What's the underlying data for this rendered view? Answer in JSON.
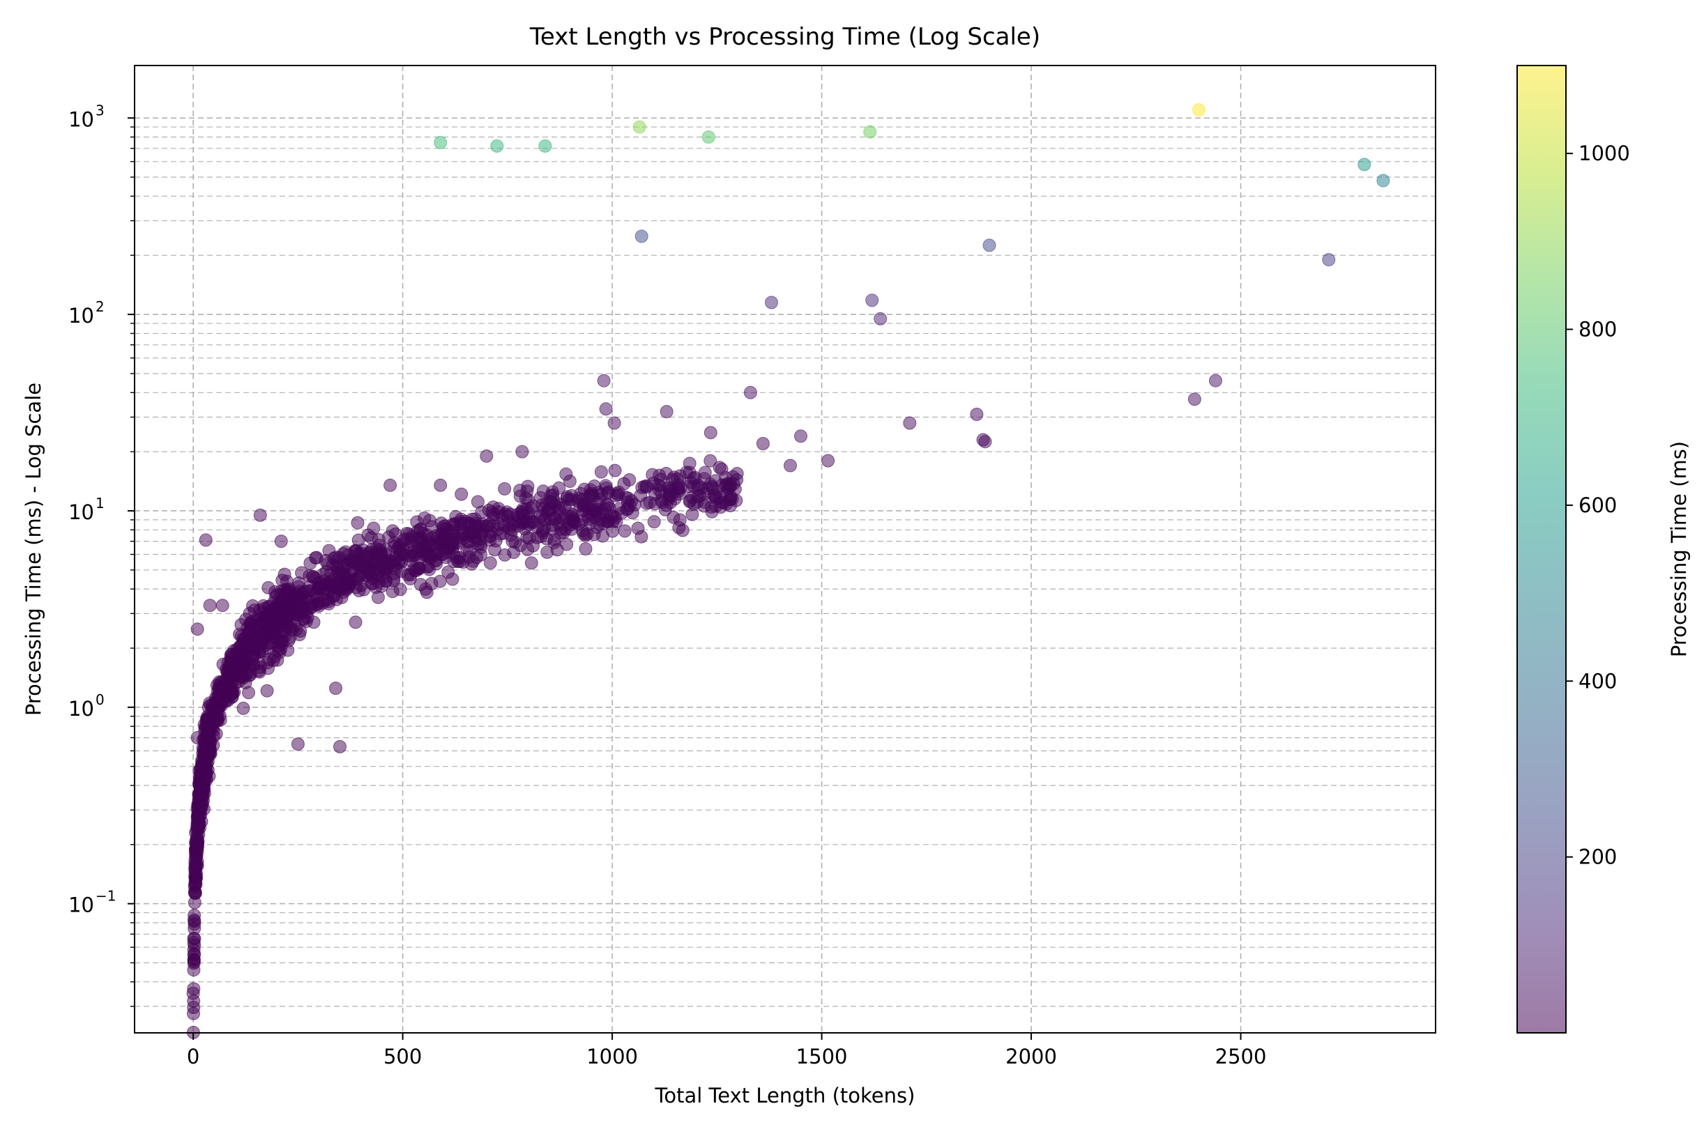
{
  "chart_data": {
    "type": "scatter",
    "title": "Text Length vs Processing Time (Log Scale)",
    "xlabel": "Total Text Length (tokens)",
    "ylabel": "Processing Time (ms) - Log Scale",
    "xlim": [
      -140,
      2965
    ],
    "ylim": [
      0.022,
      1850
    ],
    "yscale": "log",
    "grid": true,
    "x_ticks": [
      0,
      500,
      1000,
      1500,
      2000,
      2500
    ],
    "x_tick_labels": [
      "0",
      "500",
      "1000",
      "1500",
      "2000",
      "2500"
    ],
    "y_ticks": [
      0.1,
      1,
      10,
      100,
      1000
    ],
    "y_tick_labels": [
      "10",
      "10",
      "10",
      "10",
      "10"
    ],
    "y_tick_exponents": [
      "−1",
      "0",
      "1",
      "2",
      "3"
    ],
    "colorbar": {
      "label": "Processing Time (ms)",
      "colormap": "viridis",
      "range": [
        0,
        1100
      ],
      "ticks": [
        200,
        400,
        600,
        800,
        1000
      ],
      "tick_labels": [
        "200",
        "400",
        "600",
        "800",
        "1000"
      ],
      "colors": [
        "#440154",
        "#482878",
        "#3e4a89",
        "#31688e",
        "#26828e",
        "#1f9e89",
        "#35b779",
        "#6ece58",
        "#b5de2b",
        "#fde725"
      ]
    },
    "outliers": [
      {
        "x": 590,
        "y": 750
      },
      {
        "x": 725,
        "y": 720
      },
      {
        "x": 840,
        "y": 720
      },
      {
        "x": 1065,
        "y": 900
      },
      {
        "x": 1230,
        "y": 800
      },
      {
        "x": 1615,
        "y": 850
      },
      {
        "x": 2400,
        "y": 1100
      },
      {
        "x": 2795,
        "y": 580
      },
      {
        "x": 2840,
        "y": 480
      },
      {
        "x": 1070,
        "y": 250
      },
      {
        "x": 1900,
        "y": 225
      },
      {
        "x": 2710,
        "y": 190
      },
      {
        "x": 1380,
        "y": 115
      },
      {
        "x": 1620,
        "y": 118
      },
      {
        "x": 1640,
        "y": 95
      },
      {
        "x": 2440,
        "y": 46
      },
      {
        "x": 2390,
        "y": 37
      },
      {
        "x": 980,
        "y": 46
      },
      {
        "x": 1330,
        "y": 40
      },
      {
        "x": 1870,
        "y": 31
      },
      {
        "x": 1710,
        "y": 28
      },
      {
        "x": 1885,
        "y": 23
      },
      {
        "x": 1890,
        "y": 22.5
      },
      {
        "x": 1450,
        "y": 24
      },
      {
        "x": 1360,
        "y": 22
      },
      {
        "x": 1425,
        "y": 17
      },
      {
        "x": 1515,
        "y": 18
      },
      {
        "x": 1130,
        "y": 32
      },
      {
        "x": 1235,
        "y": 25
      },
      {
        "x": 1100,
        "y": 8.8
      },
      {
        "x": 30,
        "y": 7.1
      },
      {
        "x": 10,
        "y": 2.5
      },
      {
        "x": 250,
        "y": 0.65
      },
      {
        "x": 350,
        "y": 0.63
      },
      {
        "x": 340,
        "y": 1.25
      },
      {
        "x": 160,
        "y": 9.5
      },
      {
        "x": 70,
        "y": 3.3
      },
      {
        "x": 40,
        "y": 3.3
      },
      {
        "x": 210,
        "y": 7
      },
      {
        "x": 700,
        "y": 19
      },
      {
        "x": 785,
        "y": 20
      },
      {
        "x": 590,
        "y": 13.5
      },
      {
        "x": 470,
        "y": 13.5
      },
      {
        "x": 10,
        "y": 0.7
      },
      {
        "x": 0,
        "y": 0.035
      },
      {
        "x": 1005,
        "y": 28
      },
      {
        "x": 985,
        "y": 33
      }
    ]
  }
}
